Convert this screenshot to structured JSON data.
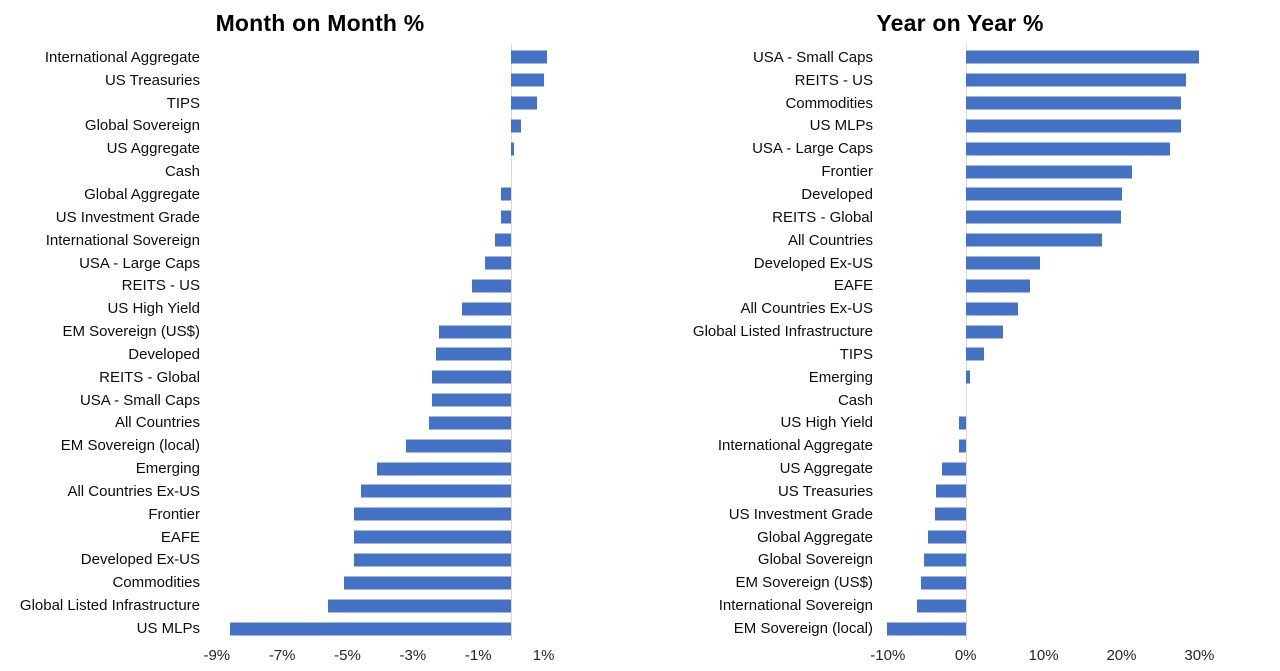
{
  "page": {
    "background_color": "#ffffff",
    "bar_color": "#4472C4",
    "axis_line_color": "#d9d9d9",
    "text_color": "#000000"
  },
  "chart_data": [
    {
      "type": "bar",
      "orientation": "horizontal",
      "title": "Month on Month %",
      "categories": [
        "International Aggregate",
        "US Treasuries",
        "TIPS",
        "Global Sovereign",
        "US Aggregate",
        "Cash",
        "Global Aggregate",
        "US Investment Grade",
        "International Sovereign",
        "USA - Large Caps",
        "REITS - US",
        "US High Yield",
        "EM Sovereign (US$)",
        "Developed",
        "REITS - Global",
        "USA - Small Caps",
        "All Countries",
        "EM Sovereign (local)",
        "Emerging",
        "All Countries Ex-US",
        "Frontier",
        "EAFE",
        "Developed Ex-US",
        "Commodities",
        "Global Listed Infrastructure",
        "US MLPs"
      ],
      "values": [
        1.1,
        1.0,
        0.8,
        0.3,
        0.1,
        0.0,
        -0.3,
        -0.3,
        -0.5,
        -0.8,
        -1.2,
        -1.5,
        -2.2,
        -2.3,
        -2.4,
        -2.4,
        -2.5,
        -3.2,
        -4.1,
        -4.6,
        -4.8,
        -4.8,
        -4.8,
        -5.1,
        -5.6,
        -8.6
      ],
      "unit": "%",
      "xlim": [
        -9.3,
        1.9
      ],
      "ticks": [
        -9,
        -7,
        -5,
        -3,
        -1,
        1
      ],
      "grid": false,
      "legend": false,
      "sort_order": "descending"
    },
    {
      "type": "bar",
      "orientation": "horizontal",
      "title": "Year on Year %",
      "categories": [
        "USA - Small Caps",
        "REITS - US",
        "Commodities",
        "US MLPs",
        "USA - Large Caps",
        "Frontier",
        "Developed",
        "REITS - Global",
        "All Countries",
        "Developed Ex-US",
        "EAFE",
        "All Countries Ex-US",
        "Global Listed Infrastructure",
        "TIPS",
        "Emerging",
        "Cash",
        "US High Yield",
        "International Aggregate",
        "US Aggregate",
        "US Treasuries",
        "US Investment Grade",
        "Global Aggregate",
        "Global Sovereign",
        "EM Sovereign (US$)",
        "International Sovereign",
        "EM Sovereign (local)"
      ],
      "values": [
        30.0,
        28.3,
        27.7,
        27.6,
        26.2,
        21.4,
        20.1,
        19.9,
        17.5,
        9.5,
        8.2,
        6.7,
        4.8,
        2.4,
        0.6,
        0.0,
        -0.8,
        -0.9,
        -3.1,
        -3.8,
        -3.9,
        -4.8,
        -5.4,
        -5.8,
        -6.3,
        -10.1
      ],
      "unit": "%",
      "xlim": [
        -11,
        35.6
      ],
      "ticks": [
        -10,
        0,
        10,
        20,
        30
      ],
      "grid": false,
      "legend": false,
      "sort_order": "descending"
    }
  ]
}
